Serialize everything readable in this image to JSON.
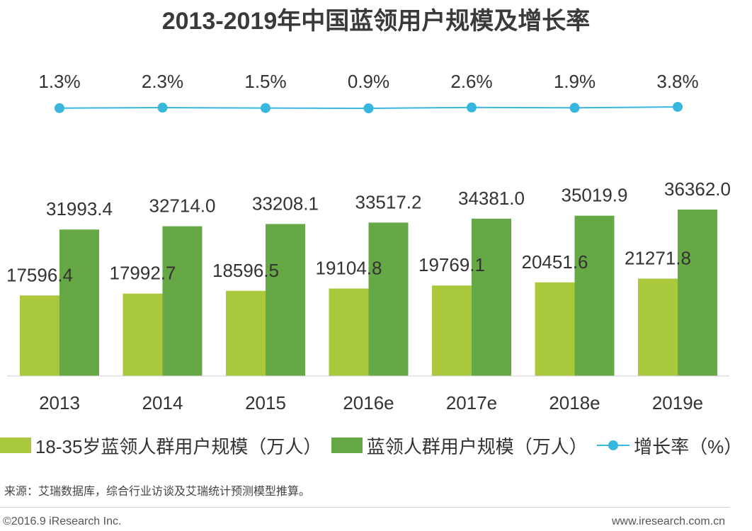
{
  "chart_data": {
    "type": "bar",
    "title": "2013-2019年中国蓝领用户规模及增长率",
    "categories": [
      "2013",
      "2014",
      "2015",
      "2016e",
      "2017e",
      "2018e",
      "2019e"
    ],
    "series": [
      {
        "name": "18-35岁蓝领人群用户规模（万人）",
        "color": "#a9c83b",
        "values": [
          17596.4,
          17992.7,
          18596.5,
          19104.8,
          19769.1,
          20451.6,
          21271.8
        ],
        "labels": [
          "17596.4",
          "17992.7",
          "18596.5",
          "19104.8",
          "19769.1",
          "20451.6",
          "21271.8"
        ]
      },
      {
        "name": "蓝领人群用户规模（万人）",
        "color": "#66a845",
        "values": [
          31993.4,
          32714.0,
          33208.1,
          33517.2,
          34381.0,
          35019.9,
          36362.0
        ],
        "labels": [
          "31993.4",
          "32714.0",
          "33208.1",
          "33517.2",
          "34381.0",
          "35019.9",
          "36362.0"
        ]
      },
      {
        "name": "增长率（%）",
        "type": "line",
        "color": "#37b7de",
        "values": [
          1.3,
          2.3,
          1.5,
          0.9,
          2.6,
          1.9,
          3.8
        ],
        "labels": [
          "1.3%",
          "2.3%",
          "1.5%",
          "0.9%",
          "2.6%",
          "1.9%",
          "3.8%"
        ]
      }
    ],
    "legend": "bottom",
    "grid": false
  },
  "source": "来源：艾瑞数据库，综合行业访谈及艾瑞统计预测模型推算。",
  "copyright": "©2016.9 iResearch Inc.",
  "website": "www.iresearch.com.cn"
}
